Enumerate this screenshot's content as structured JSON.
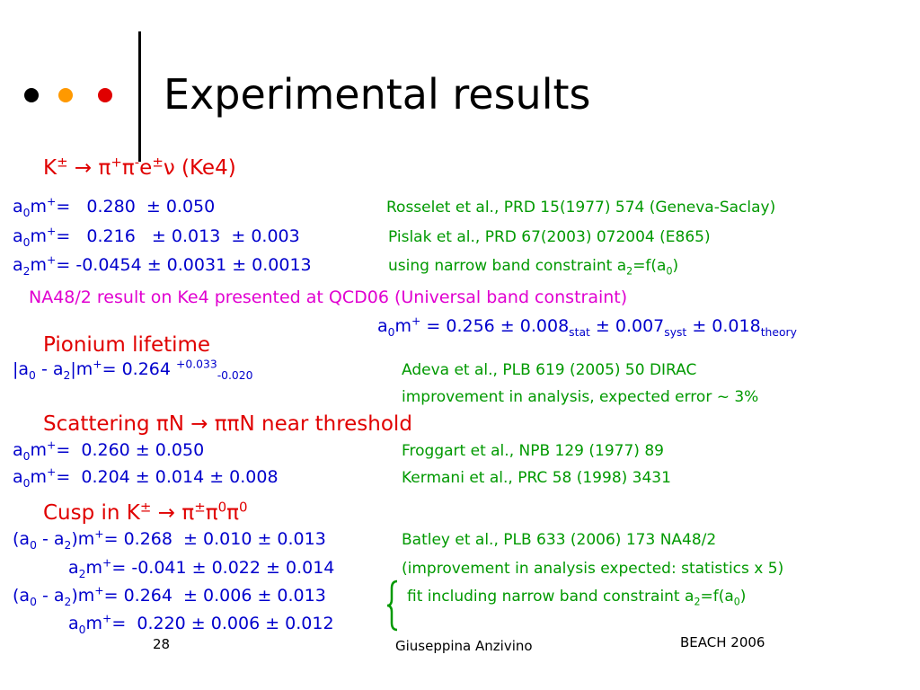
{
  "header": {
    "title": "Experimental results"
  },
  "sections": [
    {
      "heading": [
        "K",
        "±",
        " → π",
        "+",
        "π",
        "-",
        "e",
        "±",
        "ν (Ke4)"
      ],
      "rows": [
        {
          "left": [
            "a",
            "0",
            "m",
            "+",
            "=   0.280  ± 0.050"
          ],
          "right": "Rosselet et al., PRD 15(1977) 574 (Geneva-Saclay)"
        },
        {
          "left": [
            "a",
            "0",
            "m",
            "+",
            "=   0.216   ± 0.013  ± 0.003"
          ],
          "right": "Pislak et al., PRD 67(2003) 072004 (E865)"
        },
        {
          "left": [
            "a",
            "2",
            "m",
            "+",
            "= -0.0454 ± 0.0031 ± 0.0013"
          ],
          "right": [
            "using narrow band constraint a",
            "2",
            "=f(a",
            "0",
            ")"
          ]
        }
      ],
      "note": "NA48/2 result on Ke4 presented at QCD06 (Universal band constraint)",
      "result": [
        "a",
        "0",
        "m",
        "+",
        " = 0.256 ± 0.008",
        "stat",
        " ± 0.007",
        "syst",
        " ± 0.018",
        "theory"
      ]
    },
    {
      "heading": "Pionium lifetime",
      "rows": [
        {
          "left": [
            "|a",
            "0",
            " - a",
            "2",
            "|m",
            "+",
            "= 0.264 ",
            "+0.033",
            "-0.020"
          ],
          "right": "Adeva et al., PLB 619 (2005) 50 DIRAC"
        },
        {
          "right": "improvement in analysis, expected error ~ 3%"
        }
      ]
    },
    {
      "heading": "Scattering πN → ππN near threshold",
      "rows": [
        {
          "left": [
            "a",
            "0",
            "m",
            "+",
            "=  0.260 ± 0.050"
          ],
          "right": "Froggart et al., NPB 129 (1977) 89"
        },
        {
          "left": [
            "a",
            "0",
            "m",
            "+",
            "=  0.204 ± 0.014 ± 0.008"
          ],
          "right": "Kermani et al., PRC 58 (1998) 3431"
        }
      ]
    },
    {
      "heading": [
        "Cusp in K",
        "±",
        " → π",
        "±",
        "π",
        "0",
        "π",
        "0"
      ],
      "rows": [
        {
          "left": [
            "(a",
            "0",
            " - a",
            "2",
            ")m",
            "+",
            "= 0.268  ± 0.010 ± 0.013"
          ],
          "right": "Batley et al., PLB 633 (2006) 173 NA48/2"
        },
        {
          "left": [
            "a",
            "2",
            "m",
            "+",
            "= -0.041 ± 0.022 ± 0.014"
          ],
          "right": "(improvement in analysis expected: statistics x 5)"
        },
        {
          "left": [
            "(a",
            "0",
            " - a",
            "2",
            ")m",
            "+",
            "= 0.264  ± 0.006 ± 0.013"
          ],
          "right": [
            "fit including narrow band constraint a",
            "2",
            "=f(a",
            "0",
            ")"
          ]
        },
        {
          "left": [
            "a",
            "0",
            "m",
            "+",
            "=  0.220 ± 0.006 ± 0.012"
          ]
        }
      ]
    }
  ],
  "footer": {
    "page": "28",
    "author": "Giuseppina Anzivino",
    "event": "BEACH 2006"
  }
}
